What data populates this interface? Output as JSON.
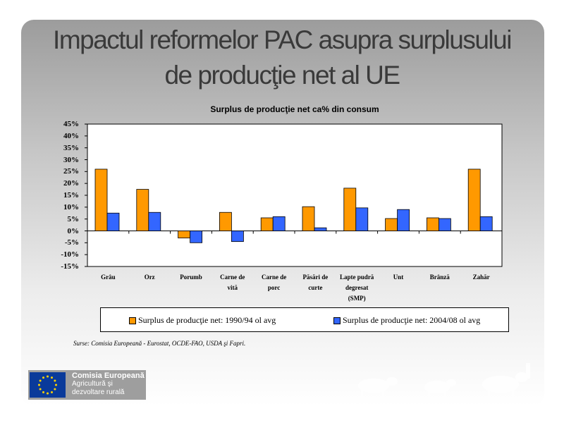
{
  "slide": {
    "title_line1": "Impactul reformelor PAC asupra surplusului",
    "title_line2": "de producţie net al UE",
    "source": "Surse: Comisia Europeană - Eurostat, OCDE-FAO, USDA şi Fapri."
  },
  "footer": {
    "org": "Comisia Europeană",
    "dept_line1": "Agricultură şi",
    "dept_line2": "dezvoltare rurală",
    "flag_color": "#0a3a9a",
    "star_color": "#ffd200"
  },
  "chart_data": {
    "type": "bar",
    "title": "Surplus de producţie net ca% din consum",
    "categories": [
      [
        "Grâu"
      ],
      [
        "Orz"
      ],
      [
        "Porumb"
      ],
      [
        "Carne de",
        "vită"
      ],
      [
        "Carne de",
        "porc"
      ],
      [
        "Păsări de",
        "curte"
      ],
      [
        "Lapte pudră",
        "degresat",
        "(SMP)"
      ],
      [
        "Unt"
      ],
      [
        "Brânză"
      ],
      [
        "Zahăr"
      ]
    ],
    "series": [
      {
        "name": "Surplus de producţie net: 1990/94  ol avg",
        "color": "#ff9900",
        "values": [
          26,
          17.5,
          -3,
          7.8,
          5.5,
          10.2,
          18,
          5.2,
          5.5,
          26
        ]
      },
      {
        "name": "Surplus de producţie net: 2004/08  ol avg",
        "color": "#3366ff",
        "values": [
          7.5,
          7.8,
          -5,
          -4.5,
          6,
          1.3,
          9.7,
          9,
          5.2,
          6
        ]
      }
    ],
    "yticks": [
      "45%",
      "40%",
      "35%",
      "30%",
      "25%",
      "20%",
      "15%",
      "10%",
      "5%",
      "0%",
      "-5%",
      "-10%",
      "-15%"
    ],
    "ylim": [
      -15,
      45
    ],
    "ystep": 5,
    "grid": false,
    "legend_position": "bottom"
  }
}
